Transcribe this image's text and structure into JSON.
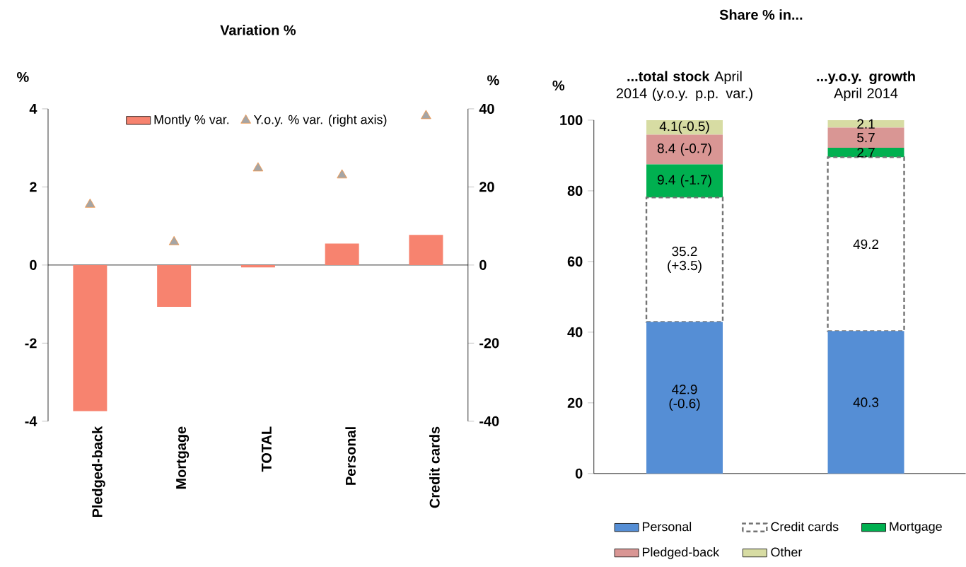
{
  "chart_data": [
    {
      "type": "bar",
      "title": "Variation %",
      "ylabel": "%",
      "y2label": "%",
      "categories": [
        "Pledged-back",
        "Mortgage",
        "TOTAL",
        "Personal",
        "Credit cards"
      ],
      "series": [
        {
          "name": "Montly % var.",
          "color": "#f7836f",
          "values": [
            -3.74,
            -1.07,
            -0.06,
            0.55,
            0.77
          ]
        },
        {
          "name": "Y.o.y. % var. (right axis)",
          "type": "scatter",
          "axis": "y2",
          "marker": "triangle",
          "color": "#a5a5a5",
          "values": [
            15.5,
            5.9,
            24.8,
            23,
            38.2
          ]
        }
      ],
      "ylim": [
        -4,
        4
      ],
      "yticks": [
        -4,
        -2,
        0,
        2,
        4
      ],
      "y2lim": [
        -40,
        40
      ],
      "y2ticks": [
        -40,
        -20,
        0,
        20,
        40
      ],
      "legend": "top"
    },
    {
      "type": "bar",
      "stacked": true,
      "title": "Share % in...",
      "ylabel": "%",
      "categories": [
        "**...total stock** April 2014 (y.o.y. p.p. var.)",
        "**...y.o.y. growth** April 2014"
      ],
      "series": [
        {
          "name": "Personal",
          "color": "#558ed5",
          "values": [
            42.9,
            40.3
          ],
          "value_labels": [
            "42.9 (-0.6)",
            "40.3"
          ]
        },
        {
          "name": "Credit cards",
          "color": "#ffffff",
          "line_style": "dashed",
          "values": [
            35.2,
            49.2
          ],
          "value_labels": [
            "35.2 (+3.5)",
            "49.2"
          ]
        },
        {
          "name": "Mortgage",
          "color": "#00b050",
          "values": [
            9.4,
            2.7
          ],
          "value_labels": [
            "9.4 (-1.7)",
            "2.7"
          ]
        },
        {
          "name": "Pledged-back",
          "color": "#d99694",
          "values": [
            8.4,
            5.7
          ],
          "value_labels": [
            "8.4 (-0.7)",
            "5.7"
          ]
        },
        {
          "name": "Other",
          "color": "#d7dca3",
          "values": [
            4.1,
            2.1
          ],
          "value_labels": [
            "4.1(-0.5)",
            "2.1"
          ]
        }
      ],
      "ylim": [
        0,
        100
      ],
      "yticks": [
        0,
        20,
        40,
        60,
        80,
        100
      ],
      "legend": "bottom"
    }
  ]
}
